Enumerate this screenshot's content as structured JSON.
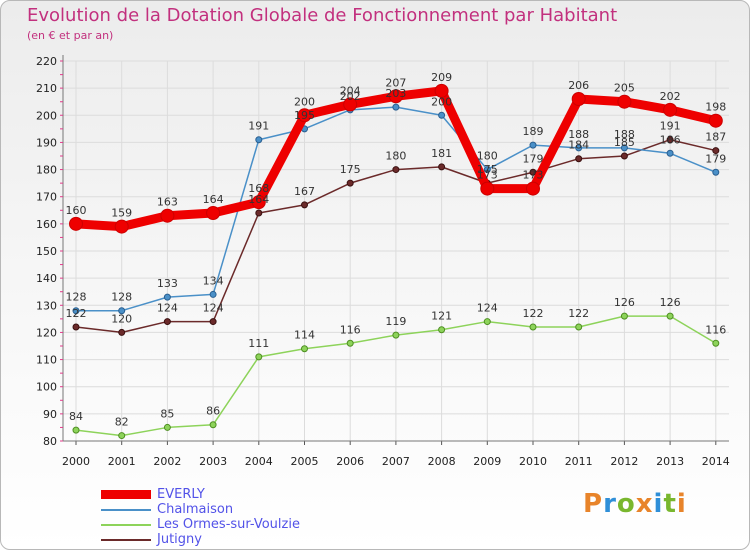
{
  "title": "Evolution de la Dotation Globale de Fonctionnement par Habitant",
  "subtitle": "(en € et par an)",
  "logo": "Proxiti",
  "logo_colors": [
    "#e8842a",
    "#2f8fd8",
    "#79b72e",
    "#e8842a",
    "#2f8fd8",
    "#79b72e",
    "#e8842a"
  ],
  "chart_data": {
    "type": "line",
    "title": "Evolution de la Dotation Globale de Fonctionnement par Habitant",
    "subtitle": "(en € et par an)",
    "ylim": [
      80,
      220
    ],
    "yticks": [
      80,
      90,
      100,
      110,
      120,
      130,
      140,
      150,
      160,
      170,
      180,
      190,
      200,
      210,
      220
    ],
    "x": [
      "2000",
      "2001",
      "2002",
      "2003",
      "2004",
      "2005",
      "2006",
      "2007",
      "2008",
      "2009",
      "2010",
      "2011",
      "2012",
      "2013",
      "2014"
    ],
    "grid": true,
    "legend_position": "bottom-left",
    "series": [
      {
        "name": "EVERLY",
        "color": "#ee0000",
        "values": [
          160,
          159,
          163,
          164,
          168,
          200,
          204,
          207,
          209,
          173,
          173,
          206,
          205,
          202,
          198
        ]
      },
      {
        "name": "Chalmaison",
        "color": "#4a90c8",
        "values": [
          128,
          128,
          133,
          134,
          191,
          195,
          202,
          203,
          200,
          180,
          189,
          188,
          188,
          186,
          179
        ]
      },
      {
        "name": "Les Ormes-sur-Voulzie",
        "color": "#8dd35a",
        "values": [
          84,
          82,
          85,
          86,
          111,
          114,
          116,
          119,
          121,
          124,
          122,
          122,
          126,
          126,
          116
        ]
      },
      {
        "name": "Jutigny",
        "color": "#6b2a2a",
        "values": [
          122,
          120,
          124,
          124,
          164,
          167,
          175,
          180,
          181,
          175,
          179,
          184,
          185,
          191,
          187
        ]
      }
    ]
  }
}
